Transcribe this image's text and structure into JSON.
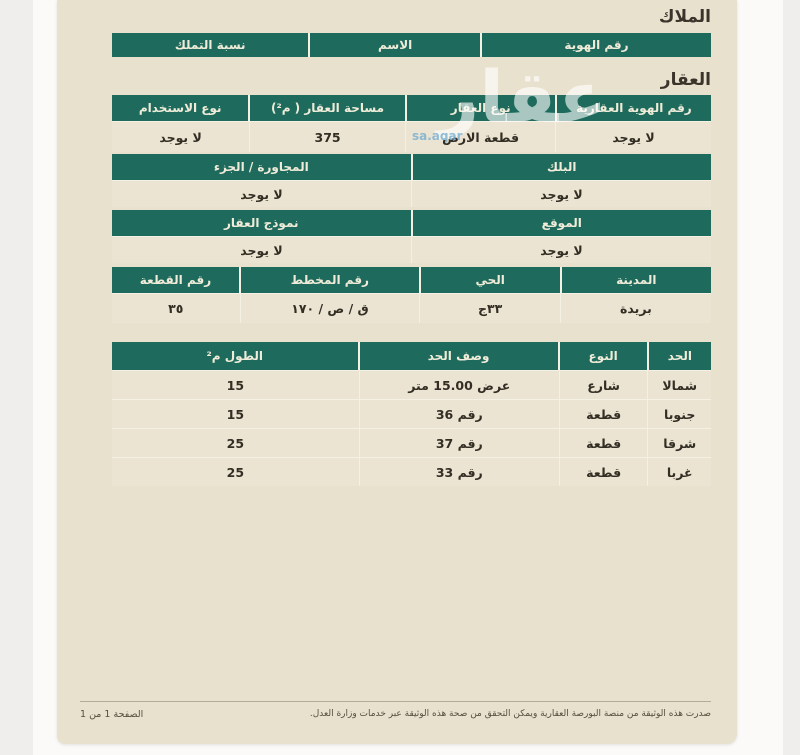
{
  "colors": {
    "accent_green": "#1e6b5d",
    "page_beige": "#e8e1ce"
  },
  "owners": {
    "title": "الملاك",
    "headers": [
      "رقم الهوية",
      "الاسم",
      "نسبة التملك"
    ]
  },
  "property": {
    "title": "العقار",
    "ids": {
      "headers": [
        "رقم الهوية العقارية",
        "نوع العقار",
        "مساحة العقار ( م²)",
        "نوع الاستخدام"
      ],
      "values": [
        "لا يوجد",
        "قطعة الارض",
        "375",
        "لا يوجد"
      ]
    },
    "block": {
      "headers": [
        "البلك",
        "المجاورة / الجزء"
      ],
      "values": [
        "لا يوجد",
        "لا يوجد"
      ]
    },
    "location": {
      "headers": [
        "الموقع",
        "نموذج العقار"
      ],
      "values": [
        "لا يوجد",
        "لا يوجد"
      ]
    },
    "city": {
      "headers": [
        "المدينة",
        "الحي",
        "رقم المخطط",
        "رقم القطعة"
      ],
      "values": [
        "بريدة",
        "٣٣ج",
        "ق / ص / ١٧٠",
        "٣٥"
      ]
    }
  },
  "boundaries": {
    "headers": [
      "الحد",
      "النوع",
      "وصف الحد",
      "الطول م²"
    ],
    "rows": [
      [
        "شمالا",
        "شارع",
        "عرض 15.00 متر",
        "15"
      ],
      [
        "جنوبا",
        "قطعة",
        "رقم 36",
        "15"
      ],
      [
        "شرقا",
        "قطعة",
        "رقم 37",
        "25"
      ],
      [
        "غربا",
        "قطعة",
        "رقم 33",
        "25"
      ]
    ]
  },
  "watermark": {
    "big": "عقار",
    "small": "sa.aqar"
  },
  "footer": {
    "note": "صدرت هذه الوثيقة من منصة البورصة العقارية ويمكن التحقق من صحة هذه الوثيقة عبر خدمات وزارة العدل.",
    "page_label": "الصفحة 1 من 1"
  }
}
